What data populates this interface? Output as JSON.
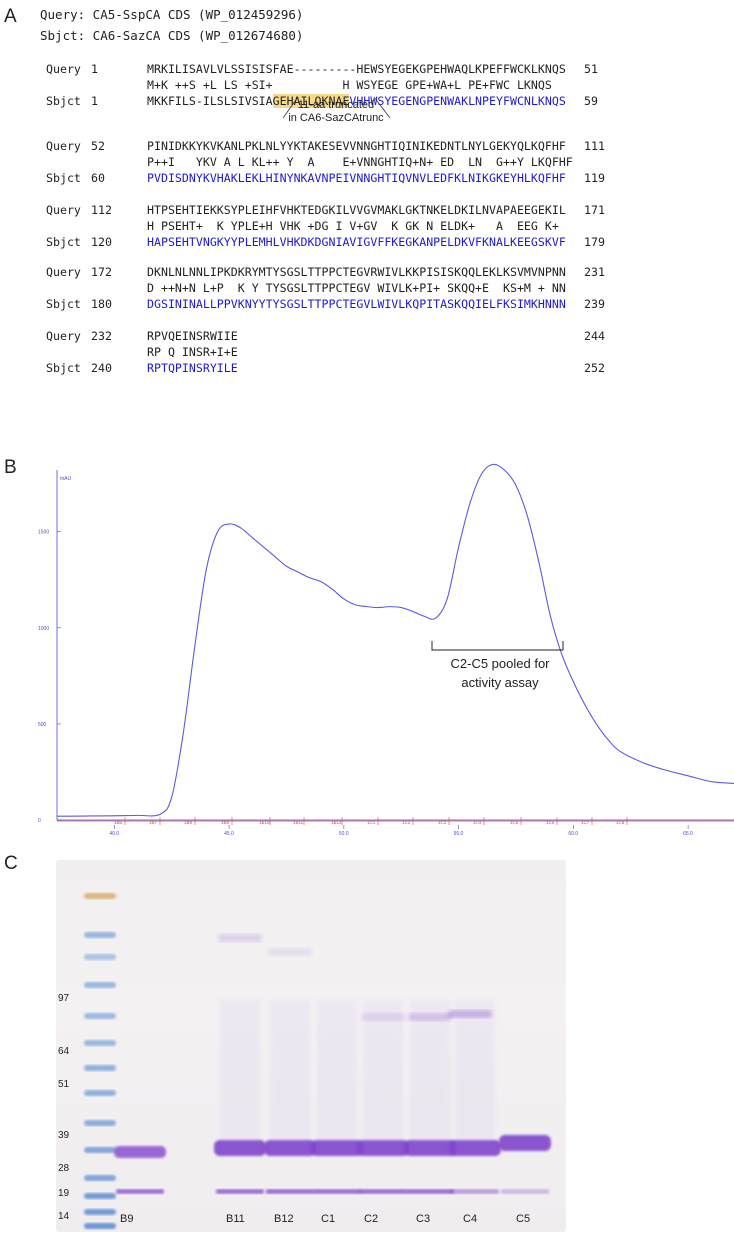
{
  "panelA": {
    "label": "A",
    "header_query": "Query: CA5-SspCA CDS (WP_012459296)",
    "header_sbjct": "Sbjct: CA6-SazCA CDS (WP_012674680)",
    "blocks": [
      {
        "q_label": "Query",
        "q_start": "1",
        "q_seq": "MRKILISAVLVLSSISISFAE---------HEWSYEGEKGPEHWAQLKPEFFWCKLKNQS",
        "q_end": "51",
        "mid": "M+K ++S +L LS +SI+          H WSYEGE GPE+WA+L PE+FWC LKNQS",
        "s_label": "Sbjct",
        "s_start": "1",
        "s_seq_a": "MKKFILS-ILSLSIVSIA",
        "s_seq_hl": "GEHAILQKNAE",
        "s_seq_b": "VHHWSYEGENGPENWAKLNPEYFWCNLKNQS",
        "s_end": "59"
      },
      {
        "q_label": "Query",
        "q_start": "52",
        "q_seq": "PINIDKKYKVKANLPKLNLYYKTAKESEVVNNGHTIQINIKEDNTLNYLGEKYQLKQFHF",
        "q_end": "111",
        "mid": "P++I   YKV A L KL++ Y  A    E+VNNGHTIQ+N+ ED  LN  G++Y LKQFHF",
        "s_label": "Sbjct",
        "s_start": "60",
        "s_seq": "PVDISDNYKVHAKLEKLHINYNKAVNPEIVNNGHTIQVNVLEDFKLNIKGKEYHLKQFHF",
        "s_end": "119"
      },
      {
        "q_label": "Query",
        "q_start": "112",
        "q_seq": "HTPSEHTIEKKSYPLEIHFVHKTEDGKILVVGVMAKLGKTNKELDKILNVAPAEEGEKIL",
        "q_end": "171",
        "mid": "H PSEHT+  K YPLE+H VHK +DG I V+GV  K GK N ELDK+   A  EEG K+",
        "s_label": "Sbjct",
        "s_start": "120",
        "s_seq": "HAPSEHTVNGKYYPLEMHLVHKDKDGNIAVIGVFFKEGKANPELDKVFKNALKEEGSKVF",
        "s_end": "179"
      },
      {
        "q_label": "Query",
        "q_start": "172",
        "q_seq": "DKNLNLNNLIPKDKRYMTYSGSLTTPPCTEGVRWIVLKKPISISKQQLEKLKSVMVNPNN",
        "q_end": "231",
        "mid": "D ++N+N L+P  K Y TYSGSLTTPPCTEGV WIVLK+PI+ SKQQ+E  KS+M + NN",
        "s_label": "Sbjct",
        "s_start": "180",
        "s_seq": "DGSININALLPPVKNYYTYSGSLTTPPCTEGVLWIVLKQPITASKQQIELFKSIMKHNNN",
        "s_end": "239"
      },
      {
        "q_label": "Query",
        "q_start": "232",
        "q_seq": "RPVQEINSRWIIE",
        "q_end": "244",
        "mid": "RP Q INSR+I+E",
        "s_label": "Sbjct",
        "s_start": "240",
        "s_seq": "RPTQPINSRYILE",
        "s_end": "252"
      }
    ],
    "note_line1": "11-aa truncated",
    "note_line2": "in CA6-SazCAtrunc"
  },
  "panelB": {
    "label": "B",
    "y_unit": "mAU",
    "y_ticks": [
      "0",
      "500",
      "1000",
      "1500"
    ],
    "x_ticks": [
      "40.0",
      "45.0",
      "50.0",
      "55.0",
      "60.0",
      "65.0"
    ],
    "fractions": [
      "1B6",
      "1B7",
      "1B8",
      "1B9",
      "1B10",
      "1B11",
      "1B12",
      "1C1",
      "1C2",
      "1C3",
      "1C4",
      "1C5",
      "1C6",
      "1C7",
      "1C8"
    ],
    "annotation_line1": "C2-C5 pooled for",
    "annotation_line2": "activity assay",
    "colors": {
      "trace": "#5a5ae6",
      "fraction": "#d44",
      "axis": "#4d4dd8"
    }
  },
  "chart_data": {
    "type": "line",
    "title": "",
    "xlabel": "",
    "ylabel": "mAU",
    "xlim": [
      37.5,
      67.0
    ],
    "ylim": [
      0,
      1800
    ],
    "x": [
      37.5,
      38.0,
      39.0,
      40.0,
      41.0,
      42.0,
      42.5,
      43.0,
      43.5,
      44.0,
      44.5,
      45.0,
      45.5,
      46.0,
      46.5,
      47.0,
      47.5,
      48.0,
      48.5,
      49.0,
      49.5,
      50.0,
      50.5,
      51.0,
      51.5,
      52.0,
      52.5,
      53.0,
      53.5,
      54.0,
      54.5,
      55.0,
      55.5,
      56.0,
      56.5,
      57.0,
      57.5,
      58.0,
      58.5,
      59.0,
      59.5,
      60.0,
      60.5,
      61.0,
      61.5,
      62.0,
      63.0,
      64.0,
      65.0,
      66.0,
      67.0
    ],
    "series": [
      {
        "values": [
          20,
          20,
          21,
          22,
          24,
          30,
          120,
          450,
          900,
          1300,
          1500,
          1540,
          1520,
          1470,
          1420,
          1370,
          1320,
          1290,
          1260,
          1240,
          1200,
          1150,
          1120,
          1110,
          1105,
          1110,
          1105,
          1085,
          1060,
          1050,
          1150,
          1420,
          1650,
          1800,
          1850,
          1820,
          1740,
          1580,
          1340,
          1060,
          860,
          720,
          600,
          500,
          420,
          360,
          300,
          260,
          230,
          200,
          190
        ]
      }
    ]
  },
  "panelC": {
    "label": "C",
    "markers": [
      "97",
      "64",
      "51",
      "39",
      "28",
      "19",
      "14"
    ],
    "lanes": [
      "B9",
      "B11",
      "B12",
      "C1",
      "C2",
      "C3",
      "C4",
      "C5"
    ]
  }
}
